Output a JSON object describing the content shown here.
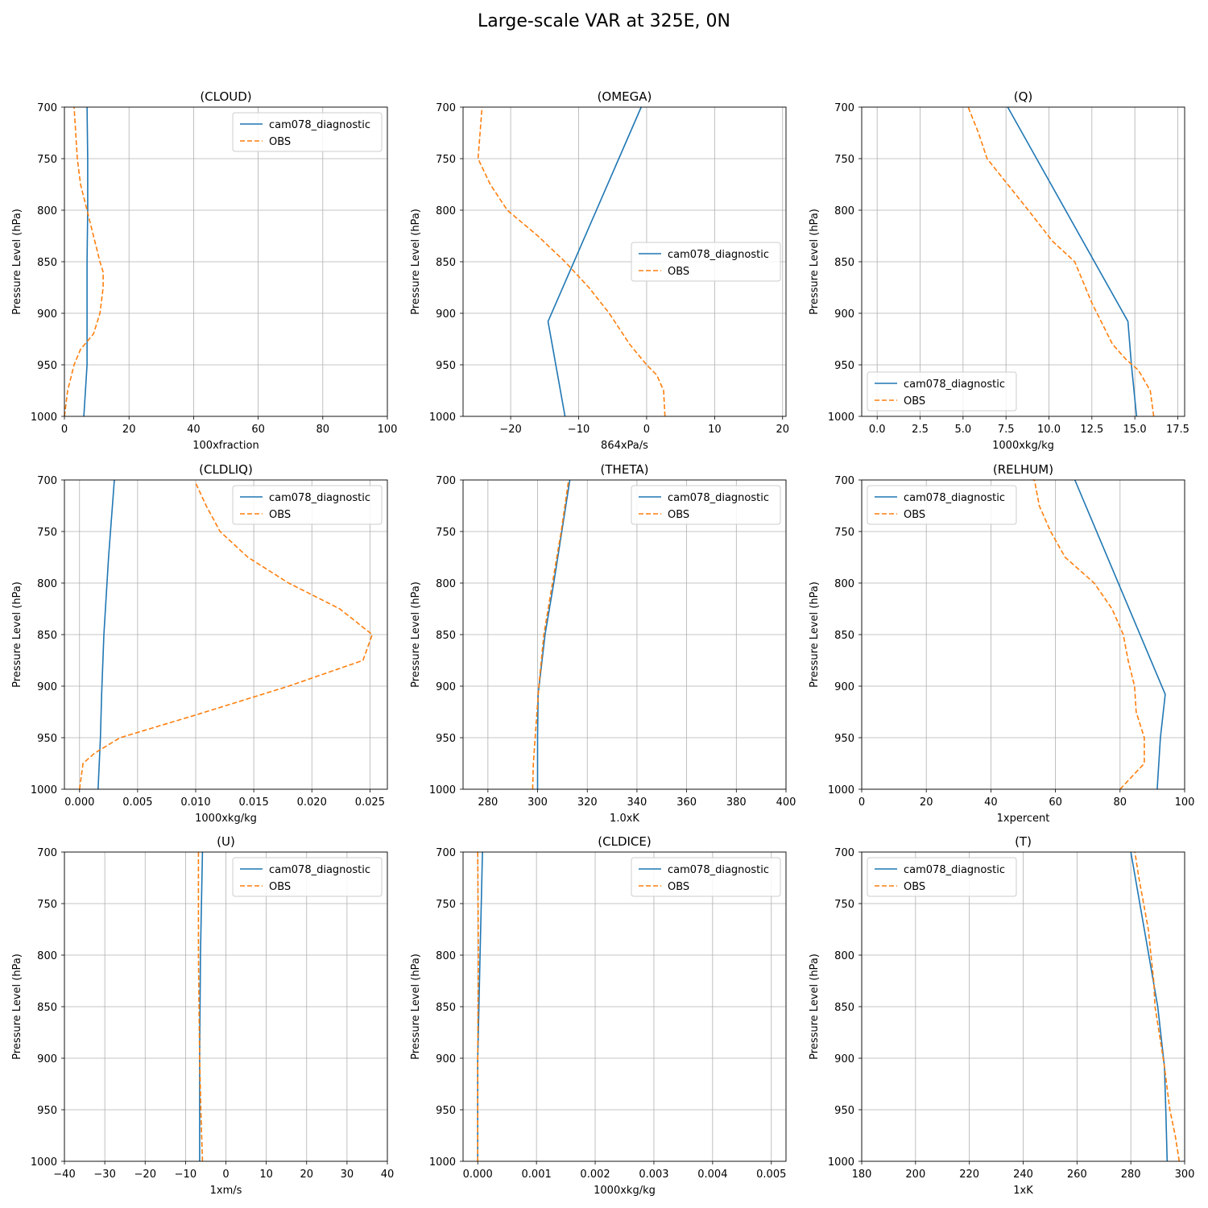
{
  "suptitle": "Large-scale VAR at 325E, 0N",
  "colors": {
    "model": "#1f77b4",
    "obs": "#ff7f0e",
    "grid": "#b0b0b0"
  },
  "chart_data": [
    {
      "type": "line",
      "title": "(CLOUD)",
      "xlabel": "100xfraction",
      "ylabel": "Pressure Level (hPa)",
      "xlim": [
        0,
        100
      ],
      "xticks": [
        0,
        20,
        40,
        60,
        80,
        100
      ],
      "ylim": [
        1000,
        700
      ],
      "yticks": [
        700,
        750,
        800,
        850,
        900,
        950,
        1000
      ],
      "grid": true,
      "legend": "upper right",
      "series": [
        {
          "name": "cam078_diagnostic",
          "style": "solid",
          "x": [
            6,
            6.5,
            7,
            7,
            7,
            7.2,
            7.2,
            7
          ],
          "y": [
            1000,
            975,
            950,
            908,
            850,
            800,
            750,
            700
          ]
        },
        {
          "name": "OBS",
          "style": "dashed",
          "x": [
            0,
            1,
            3,
            5,
            9,
            11,
            12,
            12,
            11,
            9,
            7,
            5,
            4,
            3
          ],
          "y": [
            1000,
            975,
            950,
            935,
            920,
            900,
            875,
            860,
            850,
            825,
            800,
            775,
            750,
            700
          ]
        }
      ]
    },
    {
      "type": "line",
      "title": "(OMEGA)",
      "xlabel": "864xPa/s",
      "ylabel": "Pressure Level (hPa)",
      "xlim": [
        -27,
        20.5
      ],
      "xticks": [
        -20,
        -10,
        0,
        10,
        20
      ],
      "xticklabels": [
        "−20",
        "−10",
        "0",
        "10",
        "20"
      ],
      "ylim": [
        1000,
        700
      ],
      "yticks": [
        700,
        750,
        800,
        850,
        900,
        950,
        1000
      ],
      "grid": true,
      "legend": "center right",
      "series": [
        {
          "name": "cam078_diagnostic",
          "style": "solid",
          "x": [
            -12,
            -14.5,
            -0.8
          ],
          "y": [
            1000,
            908,
            700
          ]
        },
        {
          "name": "OBS",
          "style": "dashed",
          "x": [
            2.7,
            2.5,
            1.5,
            0,
            -2.5,
            -5.5,
            -8.5,
            -12,
            -16,
            -20.5,
            -23,
            -24.8,
            -24.5,
            -24.2
          ],
          "y": [
            1000,
            975,
            960,
            950,
            930,
            900,
            875,
            850,
            825,
            800,
            775,
            750,
            725,
            700
          ]
        }
      ]
    },
    {
      "type": "line",
      "title": "(Q)",
      "xlabel": "1000xkg/kg",
      "ylabel": "Pressure Level (hPa)",
      "xlim": [
        -0.9,
        17.9
      ],
      "xticks": [
        0,
        2.5,
        5,
        7.5,
        10,
        12.5,
        15,
        17.5
      ],
      "xticklabels": [
        "0.0",
        "2.5",
        "5.0",
        "7.5",
        "10.0",
        "12.5",
        "15.0",
        "17.5"
      ],
      "ylim": [
        1000,
        700
      ],
      "yticks": [
        700,
        750,
        800,
        850,
        900,
        950,
        1000
      ],
      "grid": true,
      "legend": "lower left",
      "series": [
        {
          "name": "cam078_diagnostic",
          "style": "solid",
          "x": [
            15.1,
            14.8,
            14.6,
            7.6
          ],
          "y": [
            1000,
            950,
            908,
            700
          ]
        },
        {
          "name": "OBS",
          "style": "dashed",
          "x": [
            16.1,
            15.9,
            15.2,
            14.5,
            13.7,
            13.1,
            12.5,
            11.5,
            10.2,
            8.8,
            7.6,
            6.4,
            5.9,
            5.3
          ],
          "y": [
            1000,
            975,
            955,
            945,
            930,
            910,
            890,
            850,
            830,
            800,
            775,
            750,
            725,
            700
          ]
        }
      ]
    },
    {
      "type": "line",
      "title": "(CLDLIQ)",
      "xlabel": "1000xkg/kg",
      "ylabel": "Pressure Level (hPa)",
      "xlim": [
        -0.0013,
        0.0265
      ],
      "xticks": [
        0,
        0.005,
        0.01,
        0.015,
        0.02,
        0.025
      ],
      "xticklabels": [
        "0.000",
        "0.005",
        "0.010",
        "0.015",
        "0.020",
        "0.025"
      ],
      "ylim": [
        1000,
        700
      ],
      "yticks": [
        700,
        750,
        800,
        850,
        900,
        950,
        1000
      ],
      "grid": true,
      "legend": "upper right",
      "series": [
        {
          "name": "cam078_diagnostic",
          "style": "solid",
          "x": [
            0.0016,
            0.0018,
            0.0019,
            0.0021,
            0.0025,
            0.003
          ],
          "y": [
            1000,
            950,
            908,
            850,
            775,
            700
          ]
        },
        {
          "name": "OBS",
          "style": "dashed",
          "x": [
            0,
            0.0003,
            0.0013,
            0.0035,
            0.01,
            0.018,
            0.0244,
            0.0252,
            0.0224,
            0.018,
            0.0145,
            0.0121,
            0.0109,
            0.01
          ],
          "y": [
            1000,
            975,
            965,
            950,
            928,
            900,
            875,
            850,
            825,
            800,
            775,
            750,
            725,
            703
          ]
        }
      ]
    },
    {
      "type": "line",
      "title": "(THETA)",
      "xlabel": "1.0xK",
      "ylabel": "Pressure Level (hPa)",
      "xlim": [
        270,
        400
      ],
      "xticks": [
        280,
        300,
        320,
        340,
        360,
        380,
        400
      ],
      "ylim": [
        1000,
        700
      ],
      "yticks": [
        700,
        750,
        800,
        850,
        900,
        950,
        1000
      ],
      "grid": true,
      "legend": "upper right",
      "series": [
        {
          "name": "cam078_diagnostic",
          "style": "solid",
          "x": [
            300,
            300,
            300.2,
            303,
            306.5,
            313
          ],
          "y": [
            1000,
            950,
            908,
            850,
            800,
            700
          ]
        },
        {
          "name": "OBS",
          "style": "dashed",
          "x": [
            298,
            298.3,
            299,
            300.5,
            302.5,
            306,
            309.5,
            312.5
          ],
          "y": [
            1000,
            975,
            950,
            900,
            850,
            800,
            750,
            700
          ]
        }
      ]
    },
    {
      "type": "line",
      "title": "(RELHUM)",
      "xlabel": "1xpercent",
      "ylabel": "Pressure Level (hPa)",
      "xlim": [
        0,
        100
      ],
      "xticks": [
        0,
        20,
        40,
        60,
        80,
        100
      ],
      "ylim": [
        1000,
        700
      ],
      "yticks": [
        700,
        750,
        800,
        850,
        900,
        950,
        1000
      ],
      "grid": true,
      "legend": "upper left",
      "series": [
        {
          "name": "cam078_diagnostic",
          "style": "solid",
          "x": [
            91.5,
            92.5,
            94,
            66
          ],
          "y": [
            1000,
            950,
            908,
            700
          ]
        },
        {
          "name": "OBS",
          "style": "dashed",
          "x": [
            80,
            87.5,
            87.5,
            85,
            84.5,
            82.5,
            81,
            77.5,
            72,
            63,
            58.5,
            55,
            53.5,
            53
          ],
          "y": [
            1000,
            975,
            950,
            925,
            900,
            875,
            850,
            825,
            800,
            775,
            750,
            725,
            700,
            700
          ]
        }
      ]
    },
    {
      "type": "line",
      "title": "(U)",
      "xlabel": "1xm/s",
      "ylabel": "Pressure Level (hPa)",
      "xlim": [
        -40,
        40
      ],
      "xticks": [
        -40,
        -30,
        -20,
        -10,
        0,
        10,
        20,
        30,
        40
      ],
      "xticklabels": [
        "−40",
        "−30",
        "−20",
        "−10",
        "0",
        "10",
        "20",
        "30",
        "40"
      ],
      "ylim": [
        1000,
        700
      ],
      "yticks": [
        700,
        750,
        800,
        850,
        900,
        950,
        1000
      ],
      "grid": true,
      "legend": "upper right",
      "series": [
        {
          "name": "cam078_diagnostic",
          "style": "solid",
          "x": [
            -6.5,
            -6.5,
            -6.5,
            -6.3,
            -5.8
          ],
          "y": [
            1000,
            950,
            900,
            800,
            700
          ]
        },
        {
          "name": "OBS",
          "style": "dashed",
          "x": [
            -5.8,
            -6.2,
            -6.5,
            -6.8,
            -6.8
          ],
          "y": [
            1000,
            950,
            900,
            800,
            700
          ]
        }
      ]
    },
    {
      "type": "line",
      "title": "(CLDICE)",
      "xlabel": "1000xkg/kg",
      "ylabel": "Pressure Level (hPa)",
      "xlim": [
        -0.00025,
        0.00525
      ],
      "xticks": [
        0,
        0.001,
        0.002,
        0.003,
        0.004,
        0.005
      ],
      "xticklabels": [
        "0.000",
        "0.001",
        "0.002",
        "0.003",
        "0.004",
        "0.005"
      ],
      "ylim": [
        1000,
        700
      ],
      "yticks": [
        700,
        750,
        800,
        850,
        900,
        950,
        1000
      ],
      "grid": true,
      "legend": "upper right",
      "series": [
        {
          "name": "cam078_diagnostic",
          "style": "solid",
          "x": [
            0,
            0,
            0,
            2e-05,
            4e-05,
            8e-05
          ],
          "y": [
            1000,
            950,
            900,
            850,
            800,
            700
          ]
        },
        {
          "name": "OBS",
          "style": "dashed",
          "x": [
            0,
            0,
            0,
            5e-06,
            1e-05,
            0
          ],
          "y": [
            1000,
            950,
            900,
            850,
            800,
            700
          ]
        }
      ]
    },
    {
      "type": "line",
      "title": "(T)",
      "xlabel": "1xK",
      "ylabel": "Pressure Level (hPa)",
      "xlim": [
        180,
        300
      ],
      "xticks": [
        180,
        200,
        220,
        240,
        260,
        280,
        300
      ],
      "ylim": [
        1000,
        700
      ],
      "yticks": [
        700,
        750,
        800,
        850,
        900,
        950,
        1000
      ],
      "grid": true,
      "legend": "upper left",
      "series": [
        {
          "name": "cam078_diagnostic",
          "style": "solid",
          "x": [
            293.5,
            293,
            292.5,
            290,
            285,
            280
          ],
          "y": [
            1000,
            950,
            908,
            850,
            775,
            700
          ]
        },
        {
          "name": "OBS",
          "style": "dashed",
          "x": [
            298,
            296.5,
            294.5,
            292.5,
            290.5,
            289,
            288.5,
            287.5,
            286.5,
            283,
            281.5
          ],
          "y": [
            1000,
            975,
            950,
            908,
            875,
            850,
            825,
            800,
            775,
            725,
            700
          ]
        }
      ]
    }
  ]
}
